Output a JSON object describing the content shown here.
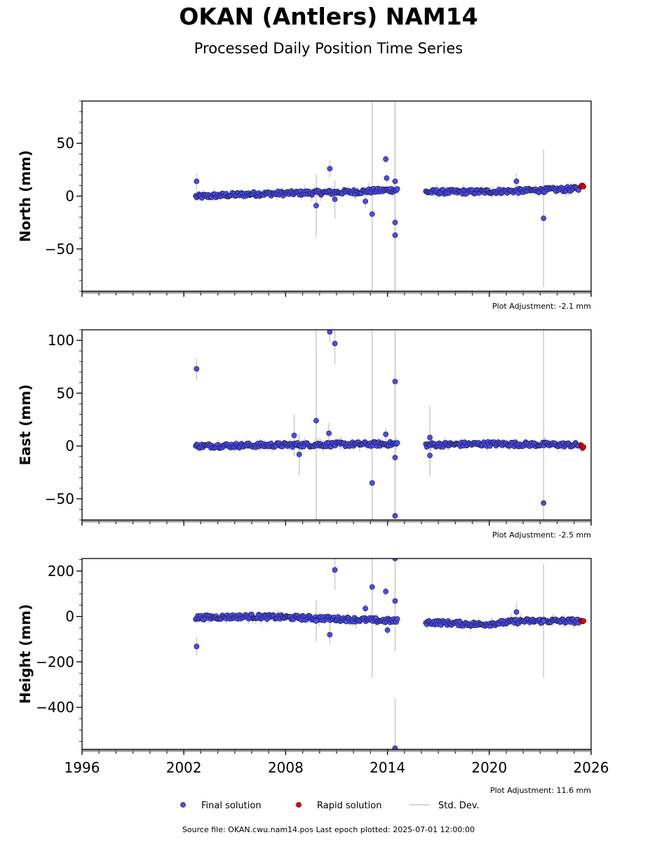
{
  "title": "OKAN (Antlers) NAM14",
  "subtitle": "Processed Daily Position Time Series",
  "footer": "Source file: OKAN.cwu.nam14.pos  Last epoch plotted: 2025-07-01 12:00:00",
  "colors": {
    "final": "#4b4bf0",
    "rapid": "#e00000",
    "stddev": "#c8c8c8",
    "edge": "#1a1a3a"
  },
  "legend": {
    "final": "Final solution",
    "rapid": "Rapid solution",
    "stddev": "Std. Dev."
  },
  "chart_data": [
    {
      "type": "scatter",
      "title": "",
      "xlabel": "",
      "ylabel": "North (mm)",
      "xlim": [
        1996,
        2026
      ],
      "ylim": [
        -90,
        90
      ],
      "yticks": [
        -50,
        0,
        50
      ],
      "xticks": [
        "1996",
        "2002",
        "2008",
        "2014",
        "2020",
        "2026"
      ],
      "adjustment": "Plot Adjustment: -2.1 mm",
      "trend": [
        [
          2002.7,
          -0.5
        ],
        [
          2006.0,
          2.0
        ],
        [
          2009.0,
          3.0
        ],
        [
          2012.0,
          4.0
        ],
        [
          2014.5,
          6.0
        ],
        [
          2016.3,
          4.0
        ],
        [
          2019.0,
          4.0
        ],
        [
          2022.0,
          5.0
        ],
        [
          2025.3,
          7.0
        ]
      ],
      "gap": [
        2014.6,
        2016.2
      ],
      "outliers": [
        {
          "x": 2002.75,
          "y": 14,
          "err": 8
        },
        {
          "x": 2009.8,
          "y": -9,
          "err": 30
        },
        {
          "x": 2010.6,
          "y": 26,
          "err": 8
        },
        {
          "x": 2010.9,
          "y": -3,
          "err": 18
        },
        {
          "x": 2012.7,
          "y": -5,
          "err": 6
        },
        {
          "x": 2013.1,
          "y": -17,
          "err": 120
        },
        {
          "x": 2013.9,
          "y": 35,
          "err": 4
        },
        {
          "x": 2013.95,
          "y": 17,
          "err": 4
        },
        {
          "x": 2014.45,
          "y": 14,
          "err": 120
        },
        {
          "x": 2014.45,
          "y": -25,
          "err": 120
        },
        {
          "x": 2014.45,
          "y": -37,
          "err": 120
        },
        {
          "x": 2021.6,
          "y": 14,
          "err": 8
        },
        {
          "x": 2023.2,
          "y": -21,
          "err": 65
        }
      ],
      "rapid": [
        {
          "x": 2025.4,
          "y": 9
        },
        {
          "x": 2025.45,
          "y": 10
        },
        {
          "x": 2025.5,
          "y": 10
        },
        {
          "x": 2025.55,
          "y": 9
        }
      ]
    },
    {
      "type": "scatter",
      "title": "",
      "xlabel": "",
      "ylabel": "East (mm)",
      "xlim": [
        1996,
        2026
      ],
      "ylim": [
        -70,
        110
      ],
      "yticks": [
        -50,
        0,
        50,
        100
      ],
      "xticks": [
        "1996",
        "2002",
        "2008",
        "2014",
        "2020",
        "2026"
      ],
      "adjustment": "Plot Adjustment: -2.5 mm",
      "trend": [
        [
          2002.7,
          0.0
        ],
        [
          2008.0,
          1.0
        ],
        [
          2014.5,
          2.0
        ],
        [
          2016.3,
          1.0
        ],
        [
          2020.0,
          2.0
        ],
        [
          2025.3,
          1.0
        ]
      ],
      "gap": [
        2014.6,
        2016.2
      ],
      "outliers": [
        {
          "x": 2002.75,
          "y": 73,
          "err": 10
        },
        {
          "x": 2009.8,
          "y": 24,
          "err": 100
        },
        {
          "x": 2010.55,
          "y": 12,
          "err": 10
        },
        {
          "x": 2010.6,
          "y": 108,
          "err": 10
        },
        {
          "x": 2010.9,
          "y": 97,
          "err": 20
        },
        {
          "x": 2013.1,
          "y": -35,
          "err": 200
        },
        {
          "x": 2013.9,
          "y": 11,
          "err": 6
        },
        {
          "x": 2014.45,
          "y": 61,
          "err": 120
        },
        {
          "x": 2014.45,
          "y": -11,
          "err": 120
        },
        {
          "x": 2014.45,
          "y": -66,
          "err": 120
        },
        {
          "x": 2008.5,
          "y": 10,
          "err": 20
        },
        {
          "x": 2008.8,
          "y": -8,
          "err": 20
        },
        {
          "x": 2016.5,
          "y": 8,
          "err": 30
        },
        {
          "x": 2016.5,
          "y": -9,
          "err": 20
        },
        {
          "x": 2023.2,
          "y": -54,
          "err": 200
        }
      ],
      "rapid": [
        {
          "x": 2025.4,
          "y": 1
        },
        {
          "x": 2025.45,
          "y": 0
        },
        {
          "x": 2025.5,
          "y": -2
        },
        {
          "x": 2025.55,
          "y": -1
        }
      ]
    },
    {
      "type": "scatter",
      "title": "",
      "xlabel": "",
      "ylabel": "Height (mm)",
      "xlim": [
        1996,
        2026
      ],
      "ylim": [
        -585,
        255
      ],
      "yticks": [
        -400,
        -200,
        0,
        200
      ],
      "xticks": [
        "1996",
        "2002",
        "2008",
        "2014",
        "2020",
        "2026"
      ],
      "adjustment": "Plot Adjustment: 11.6 mm",
      "trend": [
        [
          2002.7,
          -5.0
        ],
        [
          2006.0,
          0.0
        ],
        [
          2010.0,
          -8.0
        ],
        [
          2014.5,
          -20.0
        ],
        [
          2016.3,
          -25.0
        ],
        [
          2019.5,
          -35.0
        ],
        [
          2022.0,
          -20.0
        ],
        [
          2025.3,
          -20.0
        ]
      ],
      "gap": [
        2014.6,
        2016.2
      ],
      "outliers": [
        {
          "x": 2002.75,
          "y": -132,
          "err": 40
        },
        {
          "x": 2009.8,
          "y": -20,
          "err": 90
        },
        {
          "x": 2010.6,
          "y": -80,
          "err": 40
        },
        {
          "x": 2010.9,
          "y": 205,
          "err": 90
        },
        {
          "x": 2012.7,
          "y": 35,
          "err": 20
        },
        {
          "x": 2013.1,
          "y": 130,
          "err": 400
        },
        {
          "x": 2013.9,
          "y": 110,
          "err": 20
        },
        {
          "x": 2014.0,
          "y": -60,
          "err": 20
        },
        {
          "x": 2014.45,
          "y": 255,
          "err": 220
        },
        {
          "x": 2014.45,
          "y": 68,
          "err": 220
        },
        {
          "x": 2014.45,
          "y": -580,
          "err": 220
        },
        {
          "x": 2021.6,
          "y": 20,
          "err": 40
        },
        {
          "x": 2023.2,
          "y": -20,
          "err": 250
        }
      ],
      "rapid": [
        {
          "x": 2025.4,
          "y": -18
        },
        {
          "x": 2025.45,
          "y": -20
        },
        {
          "x": 2025.5,
          "y": -22
        },
        {
          "x": 2025.55,
          "y": -20
        }
      ]
    }
  ]
}
